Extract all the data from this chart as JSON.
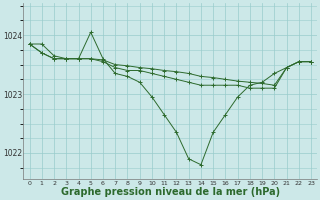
{
  "background_color": "#cce8e8",
  "grid_color": "#99cccc",
  "line_color": "#2d6a2d",
  "xlabel": "Graphe pression niveau de la mer (hPa)",
  "xlabel_fontsize": 7.0,
  "ylabel_ticks": [
    1022,
    1023,
    1024
  ],
  "xlim": [
    -0.5,
    23.5
  ],
  "ylim": [
    1021.55,
    1024.55
  ],
  "xticks": [
    0,
    1,
    2,
    3,
    4,
    5,
    6,
    7,
    8,
    9,
    10,
    11,
    12,
    13,
    14,
    15,
    16,
    17,
    18,
    19,
    20,
    21,
    22,
    23
  ],
  "series": [
    [
      1023.85,
      1023.85,
      1023.65,
      1023.6,
      1023.6,
      1024.05,
      1023.6,
      1023.35,
      1023.3,
      1023.2,
      1022.95,
      1022.65,
      1022.35,
      1021.9,
      1021.8,
      1022.35,
      1022.65,
      1022.95,
      1023.15,
      1023.2,
      1023.35,
      1023.45,
      1023.55,
      1023.55
    ],
    [
      1023.85,
      1023.7,
      1023.6,
      1023.6,
      1023.6,
      1023.6,
      1023.55,
      1023.45,
      1023.4,
      1023.4,
      1023.35,
      1023.3,
      1023.25,
      1023.2,
      1023.15,
      1023.15,
      1023.15,
      1023.15,
      1023.1,
      1023.1,
      1023.1,
      1023.45,
      1023.55,
      1023.55
    ],
    [
      1023.85,
      1023.7,
      1023.6,
      1023.6,
      1023.6,
      1023.6,
      1023.58,
      1023.5,
      1023.48,
      1023.45,
      1023.43,
      1023.4,
      1023.38,
      1023.35,
      1023.3,
      1023.28,
      1023.25,
      1023.22,
      1023.2,
      1023.18,
      1023.15,
      1023.45,
      1023.55,
      1023.55
    ]
  ]
}
